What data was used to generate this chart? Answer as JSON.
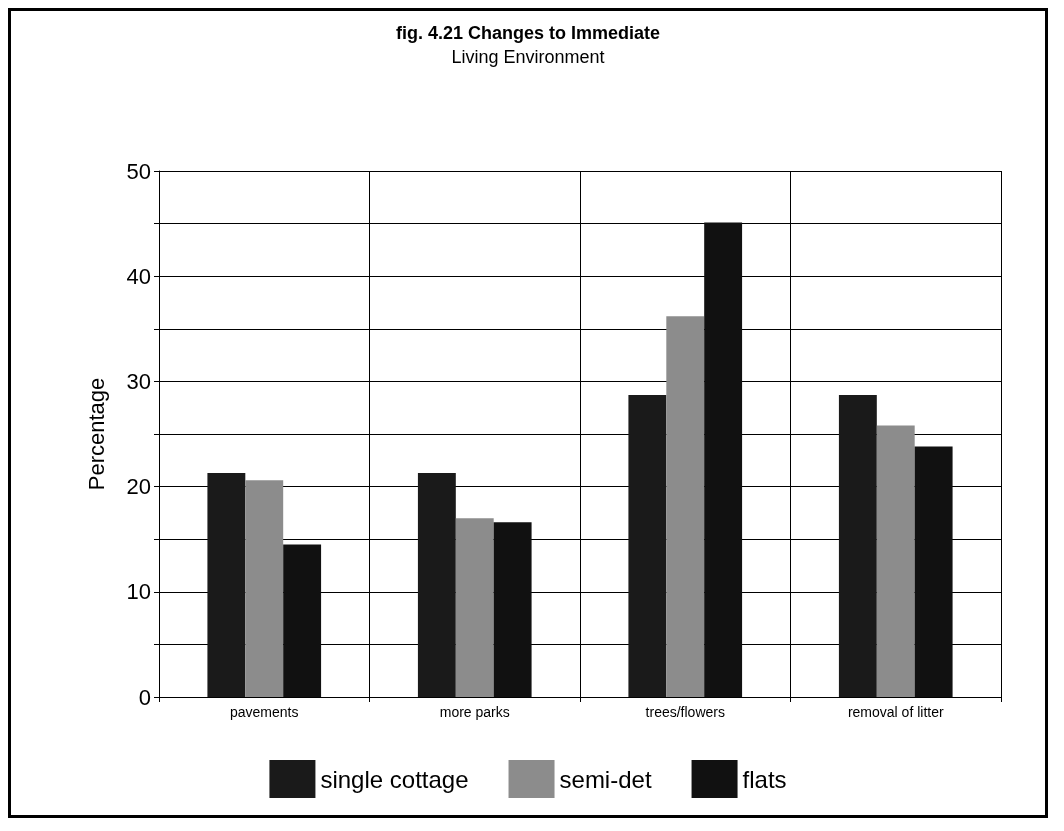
{
  "chart_data": {
    "type": "bar",
    "title": "fig. 4.21 Changes to Immediate",
    "subtitle": "Living Environment",
    "ylabel": "Percentage",
    "categories": [
      "pavements",
      "more parks",
      "trees/flowers",
      "removal of litter"
    ],
    "series": [
      {
        "name": "single cottage",
        "color": "#1a1a1a",
        "values": [
          21.3,
          21.3,
          28.7,
          28.7
        ]
      },
      {
        "name": "semi-det",
        "color": "#8c8c8c",
        "values": [
          20.6,
          17.0,
          36.2,
          25.8
        ]
      },
      {
        "name": "flats",
        "color": "#111111",
        "values": [
          14.5,
          16.6,
          45.1,
          23.8
        ]
      }
    ],
    "ylim": [
      0,
      50
    ],
    "yticks": [
      0,
      {
        "value": 5,
        "label": null
      },
      10,
      {
        "value": 15,
        "label": null
      },
      20,
      {
        "value": 25,
        "label": null
      },
      30,
      {
        "value": 35,
        "label": null
      },
      40,
      {
        "value": 45,
        "label": null
      },
      50
    ],
    "grid": true,
    "legend": "bottom"
  }
}
